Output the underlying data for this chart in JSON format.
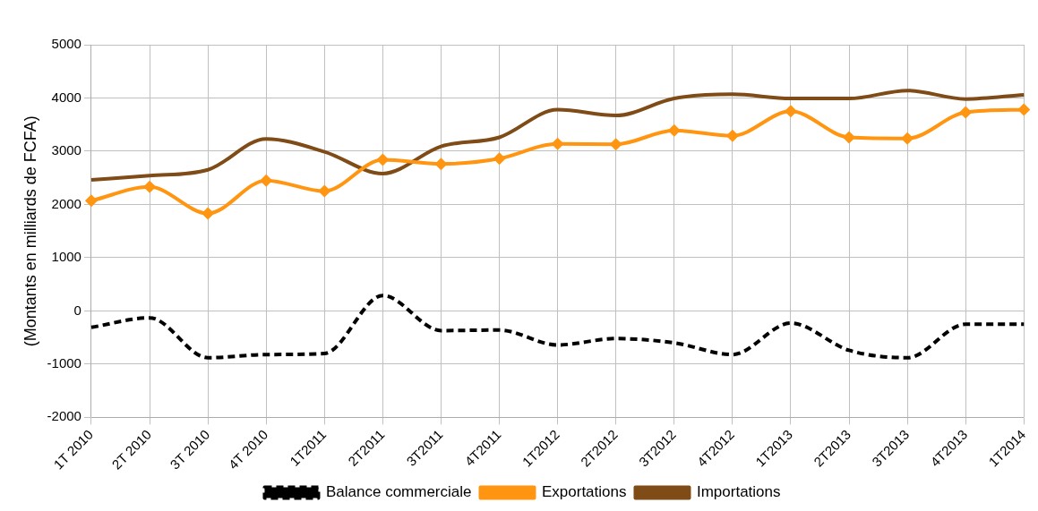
{
  "chart_data": {
    "type": "line",
    "ylabel": "(Montants en milliards de FCFA)",
    "categories": [
      "1T 2010",
      "2T 2010",
      "3T 2010",
      "4T 2010",
      "1T2011",
      "2T2011",
      "3T2011",
      "4T2011",
      "1T2012",
      "2T2012",
      "3T2012",
      "4T2012",
      "1T2013",
      "2T2013",
      "3T2013",
      "4T2013",
      "1T2014"
    ],
    "series": [
      {
        "name": "Balance commerciale",
        "color": "#000000",
        "line_style": "dashed",
        "marker": "none",
        "values": [
          -310,
          -130,
          -880,
          -820,
          -800,
          290,
          -370,
          -360,
          -640,
          -520,
          -600,
          -820,
          -230,
          -740,
          -880,
          -250,
          -250
        ]
      },
      {
        "name": "Exportations",
        "color": "#ff9510",
        "line_style": "solid",
        "marker": "diamond",
        "values": [
          2070,
          2330,
          1830,
          2450,
          2250,
          2840,
          2760,
          2860,
          3140,
          3130,
          3390,
          3290,
          3750,
          3260,
          3240,
          3730,
          3780
        ]
      },
      {
        "name": "Importations",
        "color": "#7f4b17",
        "line_style": "solid",
        "marker": "none",
        "values": [
          2460,
          2540,
          2650,
          3230,
          2990,
          2580,
          3090,
          3260,
          3780,
          3670,
          3990,
          4070,
          3990,
          3990,
          4140,
          3980,
          4060
        ]
      }
    ],
    "ylim": [
      -2000,
      5000
    ],
    "yticks": [
      -2000,
      -1000,
      0,
      1000,
      2000,
      3000,
      4000,
      5000
    ],
    "grid": true,
    "legend": "bottom"
  }
}
